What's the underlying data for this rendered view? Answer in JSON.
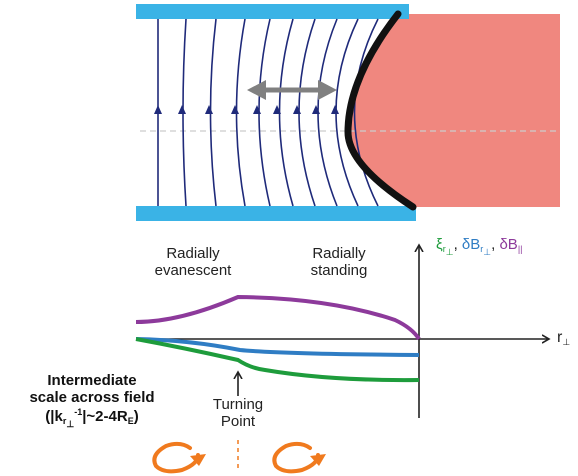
{
  "labels": {
    "radially_evanescent": [
      "Radially",
      "evanescent"
    ],
    "radially_standing": [
      "Radially",
      "standing"
    ],
    "turning_point": [
      "Turning",
      "Point"
    ],
    "intermediate_scale": [
      "Intermediate",
      "scale across field"
    ],
    "scale_formula": {
      "open": "(|k",
      "r": "r",
      "perp": "⊥",
      "exp": "-1",
      "close": "|~2-4R",
      "earth": "E",
      "end": ")"
    }
  },
  "legend": {
    "xi": "ξ",
    "dBr": "δB",
    "dBpar": "δB",
    "r": "r",
    "perp": "⊥",
    "par": "||",
    "comma": ", "
  },
  "axis": {
    "x_label": "r",
    "x_sub": "⊥"
  },
  "colors": {
    "green": "#1e9c3c",
    "blue": "#2f7dc4",
    "purple": "#8d3a9b",
    "field_lines": "#1f2a7a",
    "plates": "#3ab3e6",
    "plasma": "#f0877f",
    "arrow_gray": "#808080",
    "vortex_orange": "#f07a1e"
  }
}
